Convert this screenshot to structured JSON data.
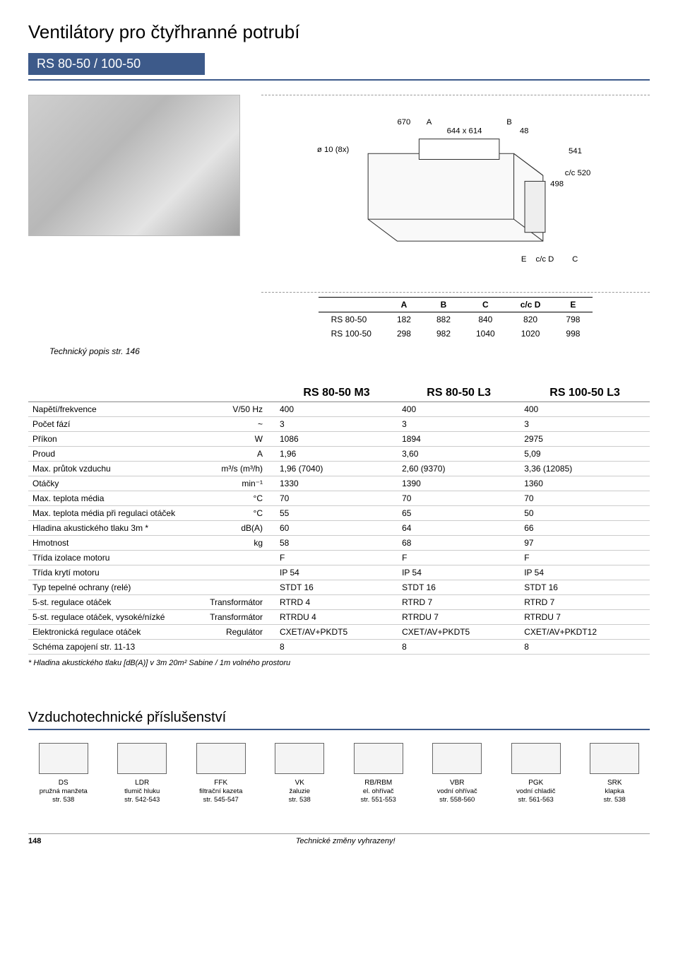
{
  "page": {
    "title": "Ventilátory pro čtyřhranné potrubí",
    "model_bar": "RS 80-50  / 100-50",
    "tech_note": "Technický popis str. 146",
    "footnote": "* Hladina akustického tlaku [dB(A)] v 3m 20m² Sabine / 1m volného prostoru",
    "page_num": "148",
    "foot_text": "Technické změny vyhrazeny!"
  },
  "diagram": {
    "labels": {
      "hole": "ø 10 (8x)",
      "top_w": "670",
      "top_letter_a": "A",
      "top_dim": "644 x 614",
      "top_letter_b": "B",
      "top_48": "48",
      "right_541": "541",
      "right_cc520": "c/c 520",
      "right_498": "498",
      "bottom_e": "E",
      "bottom_ccd": "c/c D",
      "bottom_c": "C"
    },
    "dim_table": {
      "headers": [
        "",
        "A",
        "B",
        "C",
        "c/c D",
        "E"
      ],
      "rows": [
        [
          "RS 80-50",
          "182",
          "882",
          "840",
          "820",
          "798"
        ],
        [
          "RS 100-50",
          "298",
          "982",
          "1040",
          "1020",
          "998"
        ]
      ]
    }
  },
  "spec_table": {
    "col_headers": [
      "RS 80-50 M3",
      "RS 80-50 L3",
      "RS 100-50 L3"
    ],
    "rows": [
      {
        "label": "Napětí/frekvence",
        "unit": "V/50 Hz",
        "vals": [
          "400",
          "400",
          "400"
        ]
      },
      {
        "label": "Počet fází",
        "unit": "~",
        "vals": [
          "3",
          "3",
          "3"
        ]
      },
      {
        "label": "Příkon",
        "unit": "W",
        "vals": [
          "1086",
          "1894",
          "2975"
        ]
      },
      {
        "label": "Proud",
        "unit": "A",
        "vals": [
          "1,96",
          "3,60",
          "5,09"
        ]
      },
      {
        "label": "Max. průtok vzduchu",
        "unit": "m³/s (m³/h)",
        "vals": [
          "1,96 (7040)",
          "2,60 (9370)",
          "3,36 (12085)"
        ]
      },
      {
        "label": "Otáčky",
        "unit": "min⁻¹",
        "vals": [
          "1330",
          "1390",
          "1360"
        ]
      },
      {
        "label": "Max. teplota média",
        "unit": "°C",
        "vals": [
          "70",
          "70",
          "70"
        ]
      },
      {
        "label": "Max. teplota média při regulaci otáček",
        "unit": "°C",
        "vals": [
          "55",
          "65",
          "50"
        ]
      },
      {
        "label": "Hladina akustického tlaku 3m *",
        "unit": "dB(A)",
        "vals": [
          "60",
          "64",
          "66"
        ]
      },
      {
        "label": "Hmotnost",
        "unit": "kg",
        "vals": [
          "58",
          "68",
          "97"
        ]
      },
      {
        "label": "Třída izolace motoru",
        "unit": "",
        "vals": [
          "F",
          "F",
          "F"
        ]
      },
      {
        "label": "Třída krytí motoru",
        "unit": "",
        "vals": [
          "IP 54",
          "IP 54",
          "IP 54"
        ]
      },
      {
        "label": "Typ tepelné ochrany (relé)",
        "unit": "",
        "vals": [
          "STDT 16",
          "STDT 16",
          "STDT 16"
        ]
      },
      {
        "label": "5-st. regulace otáček",
        "unit": "Transformátor",
        "vals": [
          "RTRD 4",
          "RTRD 7",
          "RTRD 7"
        ]
      },
      {
        "label": "5-st. regulace otáček, vysoké/nízké",
        "unit": "Transformátor",
        "vals": [
          "RTRDU 4",
          "RTRDU 7",
          "RTRDU 7"
        ]
      },
      {
        "label": "Elektronická regulace otáček",
        "unit": "Regulátor",
        "vals": [
          "CXET/AV+PKDT5",
          "CXET/AV+PKDT5",
          "CXET/AV+PKDT12"
        ]
      },
      {
        "label": "Schéma zapojení str. 11-13",
        "unit": "",
        "vals": [
          "8",
          "8",
          "8"
        ]
      }
    ]
  },
  "accessories": {
    "title": "Vzduchotechnické příslušenství",
    "items": [
      {
        "code": "DS",
        "desc": "pružná manžeta",
        "page": "str. 538"
      },
      {
        "code": "LDR",
        "desc": "tlumič hluku",
        "page": "str. 542-543"
      },
      {
        "code": "FFK",
        "desc": "filtrační kazeta",
        "page": "str. 545-547"
      },
      {
        "code": "VK",
        "desc": "žaluzie",
        "page": "str. 538"
      },
      {
        "code": "RB/RBM",
        "desc": "el. ohřívač",
        "page": "str. 551-553"
      },
      {
        "code": "VBR",
        "desc": "vodní ohřívač",
        "page": "str. 558-560"
      },
      {
        "code": "PGK",
        "desc": "vodní chladič",
        "page": "str. 561-563"
      },
      {
        "code": "SRK",
        "desc": "klapka",
        "page": "str. 538"
      }
    ]
  },
  "colors": {
    "brand_blue": "#3d5a8a",
    "rule_gray": "#888888",
    "light_rule": "#cccccc"
  }
}
